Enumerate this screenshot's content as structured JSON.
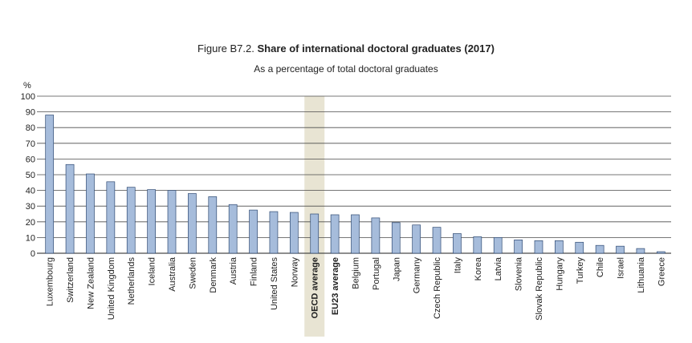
{
  "figure": {
    "number": "Figure B7.2.",
    "title": "Share of international doctoral graduates (2017)",
    "subtitle": "As a percentage of total doctoral graduates"
  },
  "chart_data": {
    "type": "bar",
    "title": "Share of international doctoral graduates (2017)",
    "subtitle": "As a percentage of total doctoral graduates",
    "ylabel": "%",
    "xlabel": "",
    "ylim": [
      0,
      100
    ],
    "yticks": [
      0,
      10,
      20,
      30,
      40,
      50,
      60,
      70,
      80,
      90,
      100
    ],
    "grid": true,
    "highlighted_category": "OECD average",
    "bold_categories": [
      "OECD average",
      "EU23 average"
    ],
    "colors": {
      "bar": "#a6bcdb",
      "bar_edge": "#2f4a73",
      "highlight_band": "#e8e4d3",
      "grid": "#4a4a4a"
    },
    "categories": [
      "Luxembourg",
      "Switzerland",
      "New Zealand",
      "United Kingdom",
      "Netherlands",
      "Iceland",
      "Australia",
      "Sweden",
      "Denmark",
      "Austria",
      "Finland",
      "United States",
      "Norway",
      "OECD average",
      "EU23 average",
      "Belgium",
      "Portugal",
      "Japan",
      "Germany",
      "Czech Republic",
      "Italy",
      "Korea",
      "Latvia",
      "Slovenia",
      "Slovak Republic",
      "Hungary",
      "Turkey",
      "Chile",
      "Israel",
      "Lithuania",
      "Greece"
    ],
    "values": [
      88,
      56.5,
      50.5,
      45.5,
      42,
      40.5,
      40,
      38,
      36,
      31,
      27.5,
      26.5,
      26,
      25,
      24.5,
      24.5,
      22.5,
      19.5,
      18,
      16.5,
      12.5,
      10.5,
      10,
      8.5,
      8,
      8,
      7,
      5,
      4.5,
      3,
      1
    ]
  }
}
